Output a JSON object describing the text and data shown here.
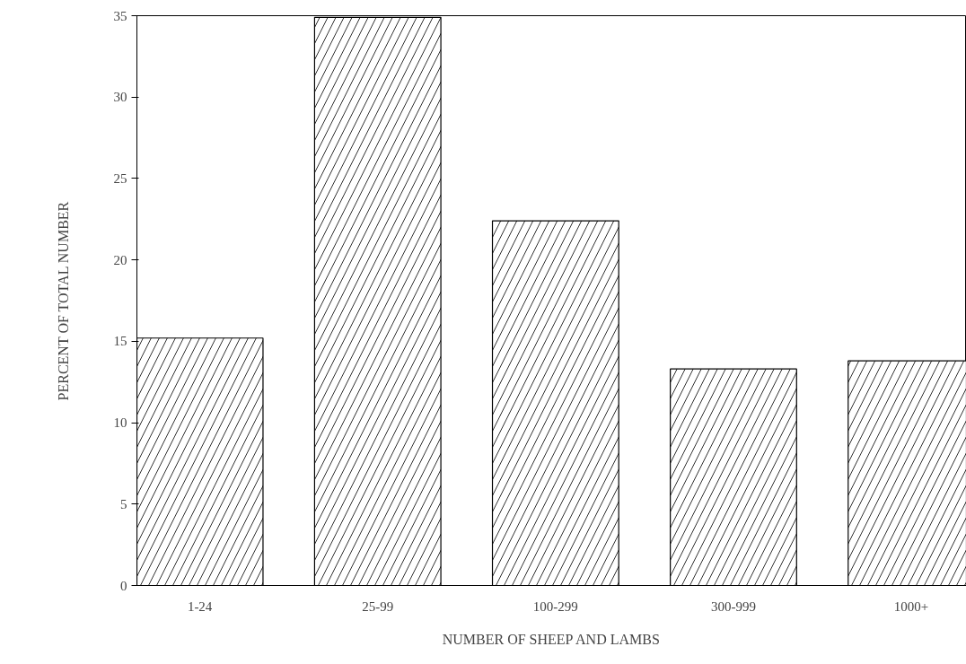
{
  "chart_data": {
    "type": "bar",
    "xlabel": "NUMBER OF SHEEP AND LAMBS",
    "ylabel": "PERCENT OF TOTAL NUMBER",
    "categories": [
      "1-24",
      "25-99",
      "100-299",
      "300-999",
      "1000+"
    ],
    "values": [
      15.2,
      34.9,
      22.4,
      13.3,
      13.8
    ],
    "color": "#ffffff",
    "ylim": [
      0,
      35
    ],
    "yticks": [
      0,
      5,
      10,
      15,
      20,
      25,
      30,
      35
    ],
    "grid": false
  }
}
